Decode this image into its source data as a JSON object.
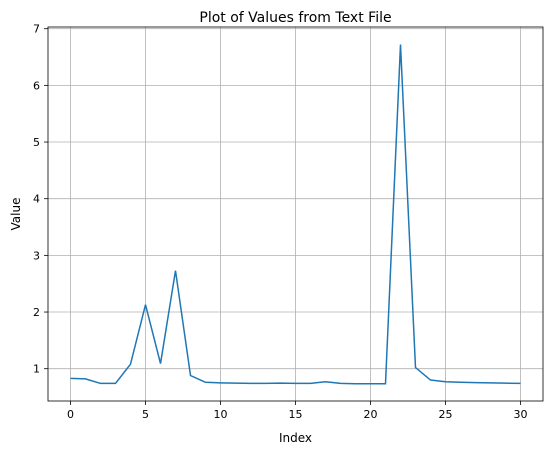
{
  "chart_data": {
    "type": "line",
    "title": "Plot of Values from Text File",
    "xlabel": "Index",
    "ylabel": "Value",
    "grid": true,
    "xlim": [
      -1.5,
      31.5
    ],
    "ylim": [
      0.43,
      7.03
    ],
    "xticks": [
      0,
      5,
      10,
      15,
      20,
      25,
      30
    ],
    "yticks": [
      1,
      2,
      3,
      4,
      5,
      6,
      7
    ],
    "series": [
      {
        "color": "#1f77b4",
        "x": [
          0,
          1,
          2,
          3,
          4,
          5,
          6,
          7,
          8,
          9,
          10,
          11,
          12,
          13,
          14,
          15,
          16,
          17,
          18,
          19,
          20,
          21,
          22,
          23,
          24,
          25,
          26,
          27,
          28,
          29,
          30
        ],
        "y": [
          0.83,
          0.82,
          0.74,
          0.74,
          1.08,
          2.13,
          1.09,
          2.73,
          0.88,
          0.76,
          0.75,
          0.745,
          0.74,
          0.74,
          0.745,
          0.74,
          0.74,
          0.77,
          0.74,
          0.735,
          0.735,
          0.735,
          6.72,
          1.02,
          0.8,
          0.77,
          0.76,
          0.755,
          0.75,
          0.745,
          0.74
        ]
      }
    ]
  }
}
